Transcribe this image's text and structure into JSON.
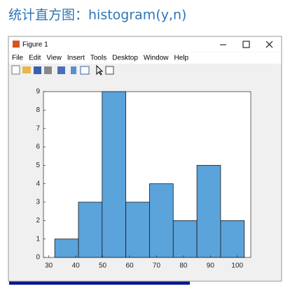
{
  "heading": "统计直方图：histogram(y,n)",
  "window": {
    "title": "Figure 1",
    "menu": [
      "File",
      "Edit",
      "View",
      "Insert",
      "Tools",
      "Desktop",
      "Window",
      "Help"
    ]
  },
  "chart_data": {
    "type": "histogram",
    "bins": [
      32.2,
      41,
      49.8,
      58.6,
      67.4,
      76.2,
      85,
      93.8,
      102.6
    ],
    "values": [
      1,
      3,
      9,
      3,
      4,
      2,
      5,
      2
    ],
    "color": "#5ba3db",
    "xlim": [
      28,
      105
    ],
    "xticks": [
      30,
      40,
      50,
      60,
      70,
      80,
      90,
      100
    ],
    "ylim": [
      0,
      9
    ],
    "yticks": [
      0,
      1,
      2,
      3,
      4,
      5,
      6,
      7,
      8,
      9
    ]
  }
}
